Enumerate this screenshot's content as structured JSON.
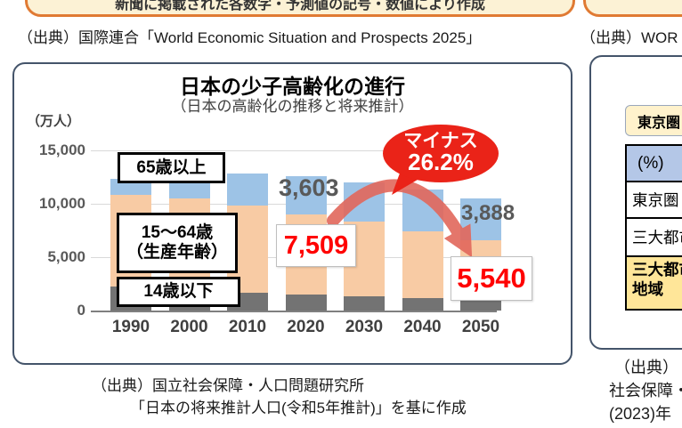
{
  "top": {
    "left_note": "新聞に掲載された各数字・予測値の記号・数値により作成",
    "left_source": "（出典）国際連合「World Economic Situation and Prospects 2025」",
    "right_note": "",
    "right_source": "（出典）WOR"
  },
  "chart_panel": {
    "title": "日本の少子高齢化の進行",
    "subtitle": "（日本の高齢化の推移と将来推計）",
    "unit_label": "（万人）",
    "legend": {
      "seniors": "65歳以上",
      "working_line1": "15～64歳",
      "working_line2": "（生産年齢）",
      "children": "14歳以下"
    },
    "source_line1": "（出典）国立社会保障・人口問題研究所",
    "source_line2": "「日本の将来推計人口(令和5年推計)」を基に作成"
  },
  "chart_data": {
    "type": "bar",
    "stacked": true,
    "title": "日本の少子高齢化の進行",
    "subtitle": "（日本の高齢化の推移と将来推計）",
    "ylabel": "（万人）",
    "ylim": [
      0,
      15000
    ],
    "yticks": [
      0,
      5000,
      10000,
      15000
    ],
    "ytick_labels": [
      "0",
      "5,000",
      "10,000",
      "15,000"
    ],
    "grid": true,
    "categories": [
      "1990",
      "2000",
      "2010",
      "2020",
      "2030",
      "2040",
      "2050"
    ],
    "series": [
      {
        "name": "14歳以下",
        "color": "#737373",
        "values": [
          2254,
          1851,
          1684,
          1503,
          1321,
          1169,
          1041
        ]
      },
      {
        "name": "15～64歳（生産年齢）",
        "color": "#F8CBA4",
        "values": [
          8614,
          8638,
          8174,
          7509,
          6976,
          6213,
          5540
        ]
      },
      {
        "name": "65歳以上",
        "color": "#9DC3E6",
        "values": [
          1493,
          2204,
          2948,
          3603,
          3716,
          3928,
          3888
        ]
      }
    ],
    "data_labels": {
      "seniors_2020": "3,603",
      "working_2020": "7,509",
      "seniors_2050": "3,888",
      "working_2050": "5,540"
    },
    "callout": {
      "line1": "マイナス",
      "line2": "26.2%",
      "color": "#EA2318"
    },
    "arrow_color": "#E2685C"
  },
  "right_panel": {
    "tag_label": "東京圏",
    "table": {
      "header": "(%)",
      "row1": "東京圏",
      "row2": "三大都市圏",
      "row3": "三大都市圏以外の地域"
    },
    "source_line1": "（出典）",
    "source_line2": "社会保障・",
    "source_line3": "(2023)年"
  }
}
